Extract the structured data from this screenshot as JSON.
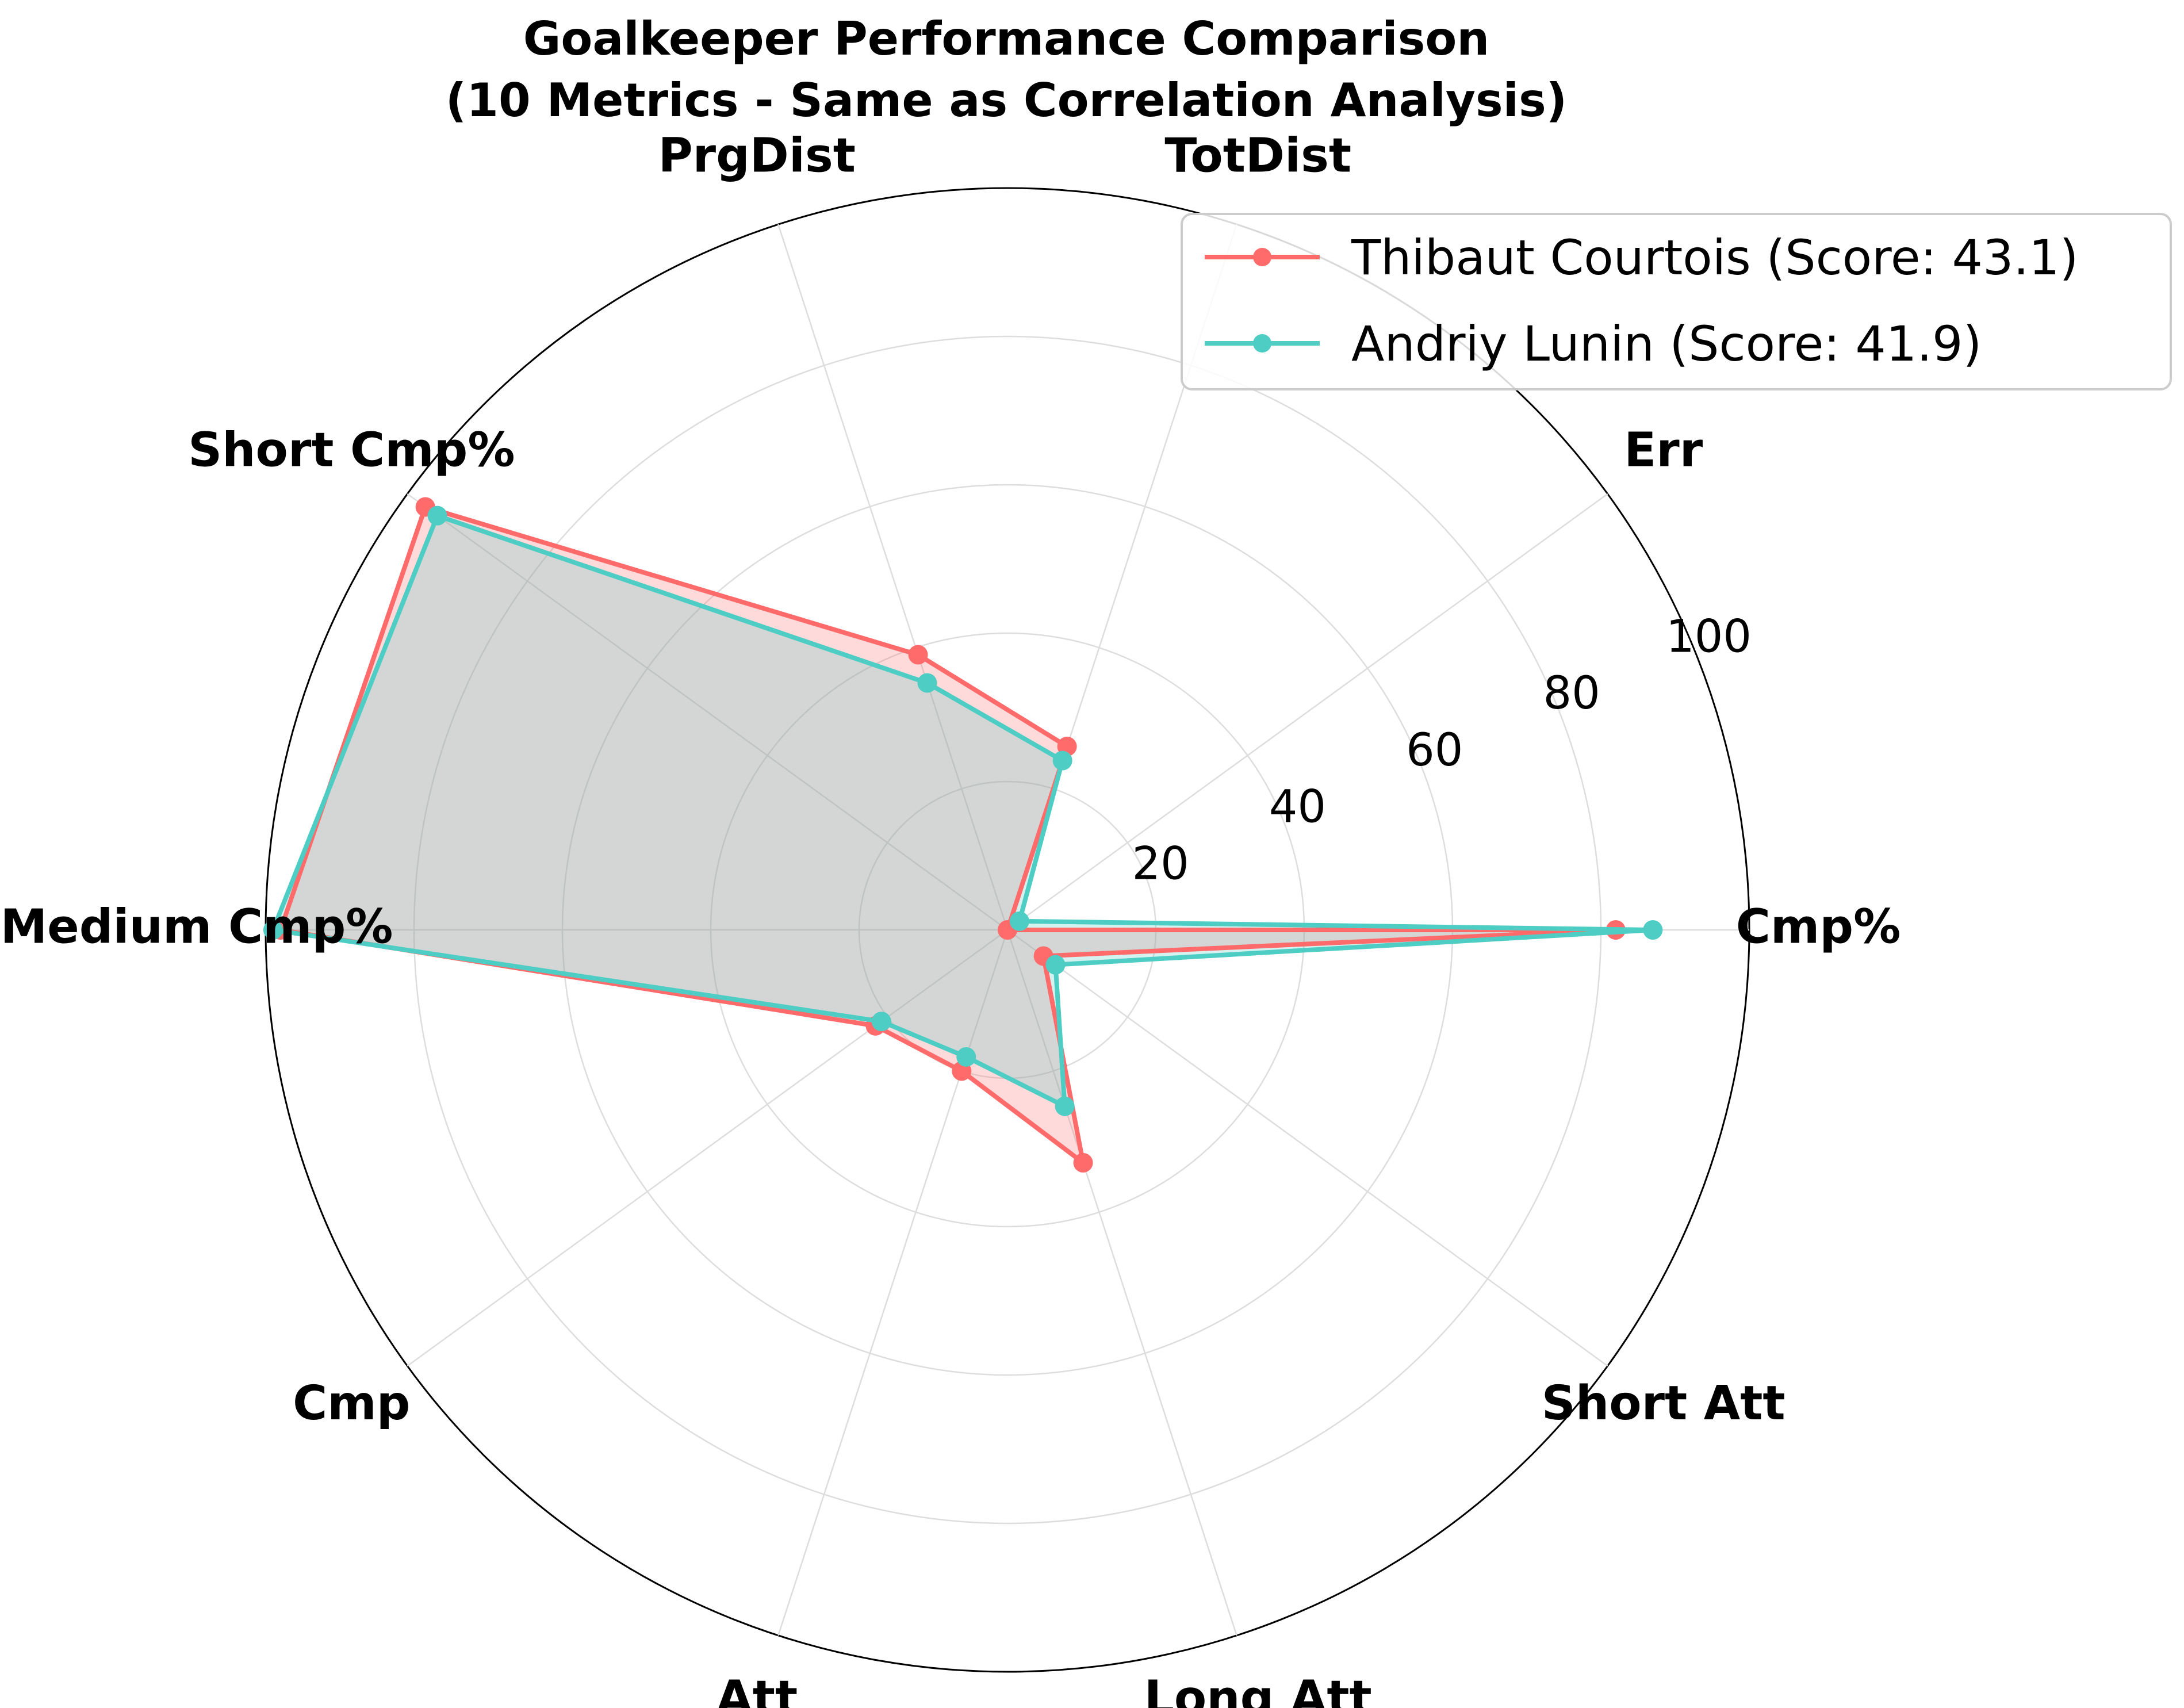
{
  "chart_data": {
    "type": "radar",
    "title": "Goalkeeper Performance Comparison",
    "subtitle": "(10 Metrics - Same as Correlation Analysis)",
    "categories": [
      "Cmp%",
      "Err",
      "TotDist",
      "PrgDist",
      "Short Cmp%",
      "Medium Cmp%",
      "Cmp",
      "Att",
      "Long Att",
      "Short Att"
    ],
    "rlim": [
      0,
      100
    ],
    "rticks": [
      "20",
      "40",
      "60",
      "80",
      "100"
    ],
    "rtick_values": [
      20,
      40,
      60,
      80,
      100
    ],
    "grid": true,
    "legend_placement": "top-right",
    "series": [
      {
        "name": "Thibaut Courtois (Score: 43.1)",
        "color": "#ff6b6b",
        "values": [
          82,
          0,
          26,
          39,
          97,
          98,
          22,
          20,
          33,
          6
        ]
      },
      {
        "name": "Andriy Lunin (Score: 41.9)",
        "color": "#4ecdc4",
        "values": [
          87,
          2,
          24,
          35,
          95,
          99,
          21,
          18,
          25,
          8
        ]
      }
    ]
  }
}
